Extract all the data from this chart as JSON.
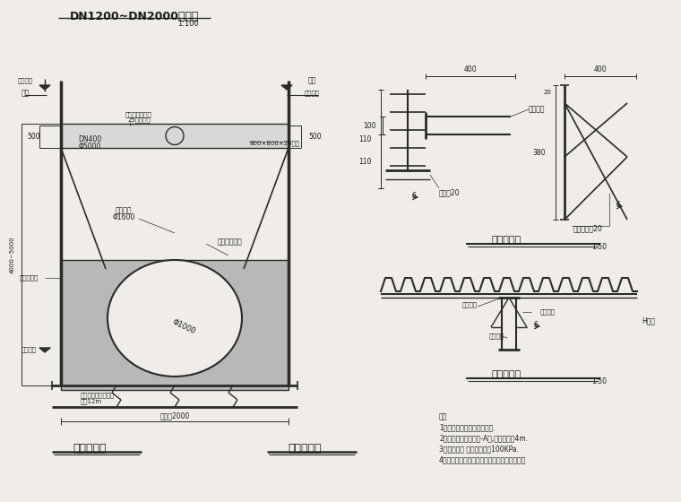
{
  "title": "DN1200~DN2000管支护",
  "title_scale": "1:100",
  "bg_color": "#f0ede8",
  "line_color": "#2a2a2a",
  "text_color": "#1a1a1a",
  "fill_color": "#c8c8c8",
  "notes": [
    "注：",
    "1、本图尺寸单位均以毫米计.",
    "2、设计荷载为：城市-A级,道路覆土为4m.",
    "3、管底地基 容许承载力为100KPa.",
    "4、管道直径和管、桩距：未标注尺寸按图示。"
  ],
  "bottom_labels": [
    "管道工程量",
    "支护工程量"
  ],
  "zuzuo_title": "支座大样图",
  "zuzuo_scale": "1:50",
  "jiedian_title": "节点大样图",
  "jiedian_scale": "1:50"
}
